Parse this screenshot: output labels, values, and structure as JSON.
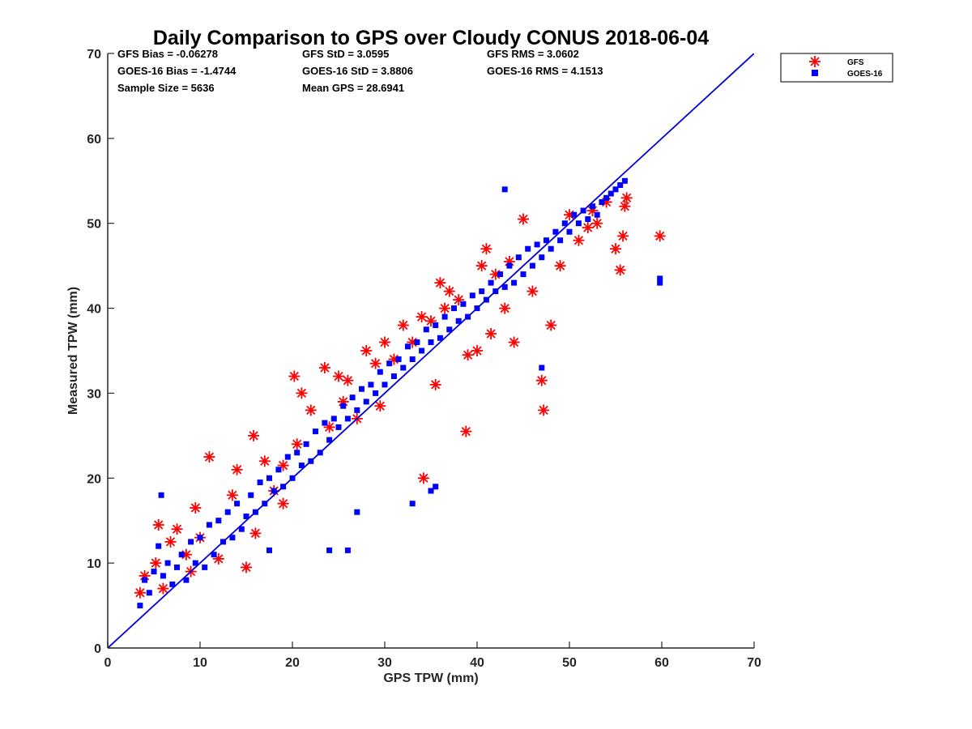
{
  "chart_data": {
    "type": "scatter",
    "title": "Daily Comparison to GPS over Cloudy CONUS 2018-06-04",
    "xlabel": "GPS TPW (mm)",
    "ylabel": "Measured TPW (mm)",
    "xlim": [
      0,
      70
    ],
    "ylim": [
      0,
      70
    ],
    "xticks": [
      "0",
      "10",
      "20",
      "30",
      "40",
      "50",
      "60",
      "70"
    ],
    "yticks": [
      "0",
      "10",
      "20",
      "30",
      "40",
      "50",
      "60",
      "70"
    ],
    "grid": false,
    "legend_position": "outside-top-right",
    "reference_line": {
      "x": [
        0,
        70
      ],
      "y": [
        0,
        70
      ],
      "color": "#0000dd"
    },
    "stats": [
      "GFS Bias = -0.06278",
      "GFS StD = 3.0595",
      "GFS RMS = 3.0602",
      "GOES-16 Bias = -1.4744",
      "GOES-16 StD = 3.8806",
      "GOES-16 RMS = 4.1513",
      "Sample Size = 5636",
      "Mean GPS = 28.6941"
    ],
    "series": [
      {
        "name": "GFS",
        "marker": "asterisk",
        "color": "#ff0000",
        "x": [
          3.5,
          4.0,
          5.2,
          5.5,
          6.0,
          6.8,
          7.5,
          8.5,
          9.0,
          9.5,
          10.0,
          11.0,
          12.0,
          13.5,
          14.0,
          15.0,
          15.8,
          17.0,
          18.0,
          19.0,
          20.2,
          20.5,
          21.0,
          22.0,
          23.5,
          24.0,
          25.0,
          26.0,
          27.0,
          28.0,
          29.0,
          30.0,
          31.0,
          32.0,
          33.0,
          34.0,
          34.2,
          35.0,
          36.0,
          36.5,
          37.0,
          38.0,
          38.8,
          39.0,
          40.0,
          40.5,
          41.0,
          42.0,
          43.0,
          44.0,
          45.0,
          46.0,
          47.0,
          47.2,
          48.0,
          49.0,
          50.0,
          51.0,
          52.0,
          52.5,
          53.0,
          54.0,
          55.0,
          55.5,
          55.8,
          56.0,
          56.2,
          59.8,
          29.5,
          35.5,
          41.5,
          43.5,
          25.5,
          19.0,
          16.0
        ],
        "y": [
          6.5,
          8.5,
          10.0,
          14.5,
          7.0,
          12.5,
          14.0,
          11.0,
          9.0,
          16.5,
          13.0,
          22.5,
          10.5,
          18.0,
          21.0,
          9.5,
          25.0,
          22.0,
          18.5,
          21.5,
          32.0,
          24.0,
          30.0,
          28.0,
          33.0,
          26.0,
          32.0,
          31.5,
          27.0,
          35.0,
          33.5,
          36.0,
          34.0,
          38.0,
          36.0,
          39.0,
          20.0,
          38.5,
          43.0,
          40.0,
          42.0,
          41.0,
          25.5,
          34.5,
          35.0,
          45.0,
          47.0,
          44.0,
          40.0,
          36.0,
          50.5,
          42.0,
          31.5,
          28.0,
          38.0,
          45.0,
          51.0,
          48.0,
          49.5,
          51.5,
          50.0,
          52.5,
          47.0,
          44.5,
          48.5,
          52.0,
          53.0,
          48.5,
          28.5,
          31.0,
          37.0,
          45.5,
          29.0,
          17.0,
          13.5
        ]
      },
      {
        "name": "GOES-16",
        "marker": "square",
        "color": "#0000ff",
        "x": [
          3.5,
          4.0,
          4.5,
          5.0,
          5.5,
          6.0,
          6.5,
          7.0,
          7.5,
          8.0,
          8.5,
          9.0,
          9.5,
          10.0,
          10.5,
          11.0,
          11.5,
          12.0,
          12.5,
          13.0,
          13.5,
          14.0,
          14.5,
          15.0,
          15.5,
          16.0,
          16.5,
          17.0,
          17.5,
          18.0,
          18.5,
          19.0,
          19.5,
          20.0,
          20.5,
          21.0,
          21.5,
          22.0,
          22.5,
          23.0,
          23.5,
          24.0,
          24.5,
          25.0,
          25.5,
          26.0,
          26.5,
          27.0,
          27.5,
          28.0,
          28.5,
          29.0,
          29.5,
          30.0,
          30.5,
          31.0,
          31.5,
          32.0,
          32.5,
          33.0,
          33.5,
          34.0,
          34.5,
          35.0,
          35.5,
          36.0,
          36.5,
          37.0,
          37.5,
          38.0,
          38.5,
          39.0,
          39.5,
          40.0,
          40.5,
          41.0,
          41.5,
          42.0,
          42.5,
          43.0,
          43.5,
          44.0,
          44.5,
          45.0,
          45.5,
          46.0,
          46.5,
          47.0,
          47.5,
          48.0,
          48.5,
          49.0,
          49.5,
          50.0,
          50.5,
          51.0,
          51.5,
          52.0,
          52.5,
          53.0,
          53.5,
          54.0,
          54.5,
          55.0,
          55.5,
          56.0,
          59.8,
          59.8,
          24.0,
          26.0,
          35.0,
          35.5,
          27.0,
          33.0,
          5.8,
          17.5,
          43.0,
          47.0
        ],
        "y": [
          5.0,
          8.0,
          6.5,
          9.0,
          12.0,
          8.5,
          10.0,
          7.5,
          9.5,
          11.0,
          8.0,
          12.5,
          10.0,
          13.0,
          9.5,
          14.5,
          11.0,
          15.0,
          12.5,
          16.0,
          13.0,
          17.0,
          14.0,
          15.5,
          18.0,
          16.0,
          19.5,
          17.0,
          20.0,
          18.5,
          21.0,
          19.0,
          22.5,
          20.0,
          23.0,
          21.5,
          24.0,
          22.0,
          25.5,
          23.0,
          26.5,
          24.5,
          27.0,
          26.0,
          28.5,
          27.0,
          29.5,
          28.0,
          30.5,
          29.0,
          31.0,
          30.0,
          32.5,
          31.0,
          33.5,
          32.0,
          34.0,
          33.0,
          35.5,
          34.0,
          36.0,
          35.0,
          37.5,
          36.0,
          38.0,
          36.5,
          39.0,
          37.5,
          40.0,
          38.5,
          40.5,
          39.0,
          41.5,
          40.0,
          42.0,
          41.0,
          43.0,
          42.0,
          44.0,
          42.5,
          45.0,
          43.0,
          46.0,
          44.0,
          47.0,
          45.0,
          47.5,
          46.0,
          48.0,
          47.0,
          49.0,
          48.0,
          50.0,
          49.0,
          51.0,
          50.0,
          51.5,
          50.5,
          52.0,
          51.0,
          52.5,
          53.0,
          53.5,
          54.0,
          54.5,
          55.0,
          43.5,
          43.0,
          11.5,
          11.5,
          18.5,
          19.0,
          16.0,
          17.0,
          18.0,
          11.5,
          54.0,
          33.0
        ]
      }
    ]
  }
}
